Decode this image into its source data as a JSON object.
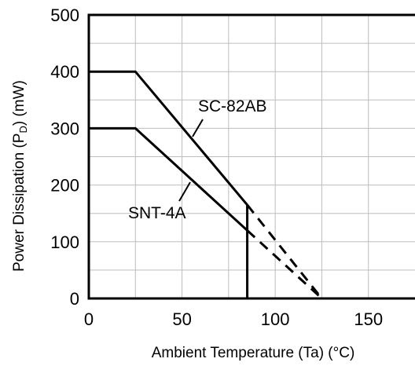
{
  "chart_data": {
    "type": "line",
    "xlabel": "Ambient Temperature (Ta) (°C)",
    "ylabel": {
      "prefix": "Power Dissipation (P",
      "subscript": "D",
      "suffix": ") (mW)"
    },
    "xlim": [
      0,
      175
    ],
    "ylim": [
      0,
      500
    ],
    "x_ticks": [
      0,
      50,
      100,
      150
    ],
    "y_ticks": [
      0,
      100,
      200,
      300,
      400,
      500
    ],
    "x_grid_step": 25,
    "y_grid_step": 50,
    "grid": true,
    "series": [
      {
        "name": "SC-82AB",
        "solid": [
          {
            "x": 0,
            "y": 400
          },
          {
            "x": 25,
            "y": 400
          },
          {
            "x": 85,
            "y": 165
          }
        ],
        "dashed": [
          {
            "x": 85,
            "y": 165
          },
          {
            "x": 125,
            "y": 0
          }
        ]
      },
      {
        "name": "SNT-4A",
        "solid": [
          {
            "x": 0,
            "y": 300
          },
          {
            "x": 25,
            "y": 300
          },
          {
            "x": 85,
            "y": 120
          }
        ],
        "dashed": [
          {
            "x": 85,
            "y": 120
          },
          {
            "x": 125,
            "y": 0
          }
        ]
      }
    ],
    "vertical_limit": {
      "x": 85,
      "y_from": 0,
      "y_to": 165
    }
  }
}
